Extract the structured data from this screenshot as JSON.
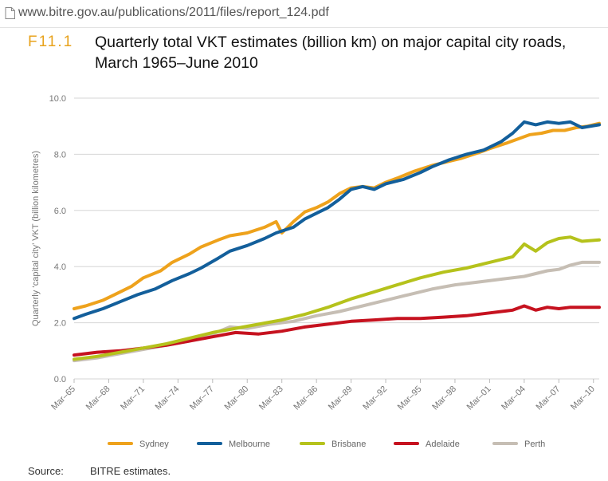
{
  "browser": {
    "url": "www.bitre.gov.au/publications/2011/files/report_124.pdf",
    "page_icon": "document-icon"
  },
  "figure": {
    "number": "F11.1",
    "title": "Quarterly total VKT estimates (billion km) on major capital city roads, March 1965–June 2010"
  },
  "source": {
    "label": "Source:",
    "text": "BITRE estimates."
  },
  "chart_data": {
    "type": "line",
    "ylabel": "Quarterly ‘capital city’ VKT (billion kilometres)",
    "xlabel": "",
    "ylim": [
      0,
      10
    ],
    "yticks": [
      "0.0",
      "2.0",
      "4.0",
      "6.0",
      "8.0",
      "10.0"
    ],
    "grid": "horizontal",
    "legend_position": "bottom",
    "x_tick_labels": [
      "Mar–65",
      "Mar–68",
      "Mar–71",
      "Mar–74",
      "Mar–77",
      "Mar–80",
      "Mar–83",
      "Mar–86",
      "Mar–89",
      "Mar–92",
      "Mar–95",
      "Mar–98",
      "Mar–01",
      "Mar–04",
      "Mar–07",
      "Mar–10"
    ],
    "x_tick_years": [
      1965,
      1968,
      1971,
      1974,
      1977,
      1980,
      1983,
      1986,
      1989,
      1992,
      1995,
      1998,
      2001,
      2004,
      2007,
      2010
    ],
    "x_range": [
      1965.0,
      2010.5
    ],
    "series": [
      {
        "name": "Sydney",
        "color": "#eea21c",
        "x": [
          1965.0,
          1966.0,
          1967.5,
          1968.5,
          1970.0,
          1971.0,
          1972.5,
          1973.5,
          1975.0,
          1976.0,
          1977.5,
          1978.5,
          1980.0,
          1981.5,
          1982.5,
          1983.0,
          1984.0,
          1985.0,
          1986.0,
          1987.0,
          1988.0,
          1989.0,
          1990.0,
          1991.0,
          1992.0,
          1993.0,
          1994.5,
          1996.0,
          1997.5,
          1998.5,
          2000.0,
          2001.0,
          2002.5,
          2003.5,
          2004.5,
          2005.5,
          2006.5,
          2007.5,
          2008.5,
          2009.5,
          2010.5
        ],
        "y": [
          2.5,
          2.6,
          2.8,
          3.0,
          3.3,
          3.6,
          3.85,
          4.15,
          4.45,
          4.7,
          4.95,
          5.1,
          5.2,
          5.4,
          5.6,
          5.2,
          5.6,
          5.95,
          6.1,
          6.3,
          6.6,
          6.8,
          6.85,
          6.8,
          7.0,
          7.15,
          7.4,
          7.6,
          7.75,
          7.85,
          8.05,
          8.2,
          8.4,
          8.55,
          8.7,
          8.75,
          8.85,
          8.85,
          8.95,
          9.0,
          9.1
        ]
      },
      {
        "name": "Melbourne",
        "color": "#135f9b",
        "x": [
          1965.0,
          1966.0,
          1967.5,
          1969.0,
          1970.5,
          1972.0,
          1973.5,
          1975.0,
          1976.0,
          1977.5,
          1978.5,
          1980.0,
          1981.5,
          1982.5,
          1984.0,
          1985.0,
          1986.0,
          1987.0,
          1988.0,
          1989.0,
          1990.0,
          1991.0,
          1992.0,
          1993.5,
          1995.0,
          1996.0,
          1997.5,
          1999.0,
          2000.5,
          2002.0,
          2003.0,
          2004.0,
          2005.0,
          2006.0,
          2007.0,
          2008.0,
          2009.0,
          2010.5
        ],
        "y": [
          2.15,
          2.3,
          2.5,
          2.75,
          3.0,
          3.2,
          3.5,
          3.75,
          3.95,
          4.3,
          4.55,
          4.75,
          5.0,
          5.2,
          5.4,
          5.7,
          5.9,
          6.1,
          6.4,
          6.75,
          6.85,
          6.75,
          6.95,
          7.1,
          7.35,
          7.55,
          7.8,
          8.0,
          8.15,
          8.45,
          8.75,
          9.15,
          9.05,
          9.15,
          9.1,
          9.15,
          8.95,
          9.05
        ]
      },
      {
        "name": "Brisbane",
        "color": "#b5c21c",
        "x": [
          1965.0,
          1967.0,
          1969.0,
          1971.0,
          1973.0,
          1975.0,
          1977.0,
          1979.0,
          1981.0,
          1983.0,
          1985.0,
          1987.0,
          1989.0,
          1991.0,
          1993.0,
          1995.0,
          1997.0,
          1999.0,
          2001.0,
          2003.0,
          2004.0,
          2005.0,
          2006.0,
          2007.0,
          2008.0,
          2009.0,
          2010.5
        ],
        "y": [
          0.7,
          0.8,
          0.95,
          1.1,
          1.25,
          1.45,
          1.65,
          1.8,
          1.95,
          2.1,
          2.3,
          2.55,
          2.85,
          3.1,
          3.35,
          3.6,
          3.8,
          3.95,
          4.15,
          4.35,
          4.8,
          4.55,
          4.85,
          5.0,
          5.05,
          4.9,
          4.95
        ]
      },
      {
        "name": "Adelaide",
        "color": "#c6121f",
        "x": [
          1965.0,
          1967.0,
          1969.0,
          1971.0,
          1973.0,
          1975.0,
          1977.0,
          1979.0,
          1981.0,
          1983.0,
          1985.0,
          1987.0,
          1989.0,
          1991.0,
          1993.0,
          1995.0,
          1997.0,
          1999.0,
          2001.0,
          2003.0,
          2004.0,
          2005.0,
          2006.0,
          2007.0,
          2008.0,
          2009.0,
          2010.5
        ],
        "y": [
          0.85,
          0.95,
          1.0,
          1.1,
          1.2,
          1.35,
          1.5,
          1.65,
          1.6,
          1.7,
          1.85,
          1.95,
          2.05,
          2.1,
          2.15,
          2.15,
          2.2,
          2.25,
          2.35,
          2.45,
          2.6,
          2.45,
          2.55,
          2.5,
          2.55,
          2.55,
          2.55
        ]
      },
      {
        "name": "Perth",
        "color": "#c6beb4",
        "x": [
          1965.0,
          1967.0,
          1969.0,
          1971.0,
          1973.0,
          1975.0,
          1977.0,
          1978.5,
          1980.0,
          1982.0,
          1984.0,
          1986.0,
          1988.0,
          1990.0,
          1992.0,
          1994.0,
          1996.0,
          1998.0,
          2000.0,
          2002.0,
          2004.0,
          2005.0,
          2006.0,
          2007.0,
          2008.0,
          2009.0,
          2010.5
        ],
        "y": [
          0.65,
          0.75,
          0.9,
          1.05,
          1.2,
          1.35,
          1.6,
          1.85,
          1.8,
          1.95,
          2.05,
          2.25,
          2.4,
          2.6,
          2.8,
          3.0,
          3.2,
          3.35,
          3.45,
          3.55,
          3.65,
          3.75,
          3.85,
          3.9,
          4.05,
          4.15,
          4.15
        ]
      }
    ]
  }
}
